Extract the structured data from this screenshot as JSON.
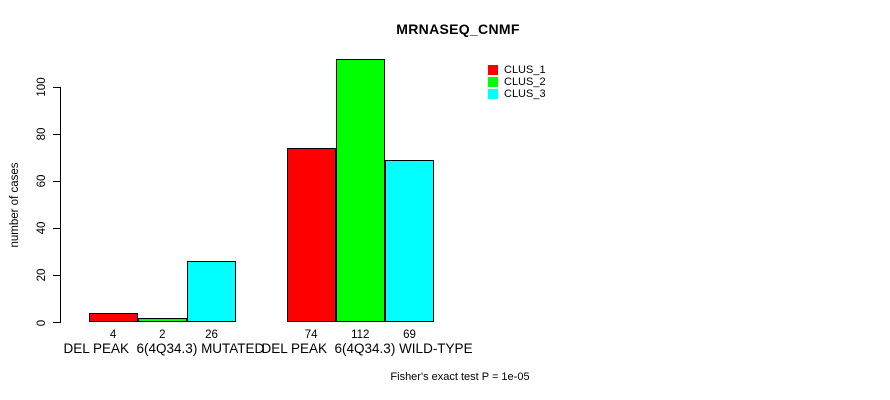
{
  "chart_data": {
    "type": "bar",
    "title": "MRNASEQ_CNMF",
    "xlabel": "",
    "ylabel": "number of cases",
    "ylim": [
      0,
      112
    ],
    "yticks": [
      0,
      20,
      40,
      60,
      80,
      100
    ],
    "grid": false,
    "legend_position": "top-right",
    "categories": [
      "DEL PEAK  6(4Q34.3) MUTATED",
      "DEL PEAK  6(4Q34.3) WILD-TYPE"
    ],
    "series": [
      {
        "name": "CLUS_1",
        "color": "#ff0000",
        "values": [
          4,
          74
        ]
      },
      {
        "name": "CLUS_2",
        "color": "#00ff00",
        "values": [
          2,
          112
        ]
      },
      {
        "name": "CLUS_3",
        "color": "#00ffff",
        "values": [
          26,
          69
        ]
      }
    ],
    "bar_value_labels": [
      [
        4,
        2,
        26
      ],
      [
        74,
        112,
        69
      ]
    ],
    "annotation": "Fisher's exact test P = 1e-05"
  },
  "colors": {
    "bar_border": "#000000",
    "axis": "#000000",
    "text": "#000000",
    "background": "#ffffff"
  }
}
